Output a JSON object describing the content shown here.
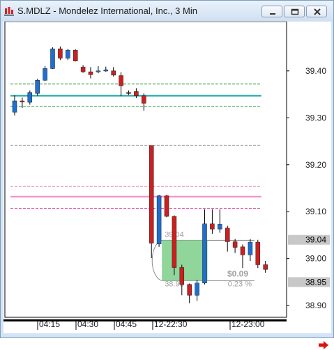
{
  "window": {
    "title": "S.MDLZ - Mondelez International, Inc., 3 Min",
    "icon": "chart-app-icon",
    "controls": [
      "minimize-icon",
      "maximize-icon",
      "close-icon"
    ]
  },
  "chart_data": {
    "type": "candlestick",
    "ylim": [
      38.875,
      39.505
    ],
    "y_ticks": [
      39.4,
      39.3,
      39.2,
      39.1,
      39.0,
      38.9
    ],
    "y_tick_labels": [
      "39.40",
      "39.30",
      "39.20",
      "39.10",
      "39.00",
      "38.90"
    ],
    "price_tags": [
      {
        "label": "39.04",
        "value": 39.04
      },
      {
        "label": "38.95",
        "value": 38.95
      }
    ],
    "x_tick_labels": [
      "04:15",
      "04:30",
      "04:45",
      "12-22:30",
      "12-23:00"
    ],
    "up_color": "#1f6fd1",
    "down_color": "#cc1f1f",
    "candles": [
      {
        "o": 39.312,
        "h": 39.348,
        "l": 39.305,
        "c": 39.336
      },
      {
        "o": 39.336,
        "h": 39.343,
        "l": 39.321,
        "c": 39.335
      },
      {
        "o": 39.333,
        "h": 39.358,
        "l": 39.328,
        "c": 39.354
      },
      {
        "o": 39.352,
        "h": 39.383,
        "l": 39.347,
        "c": 39.38
      },
      {
        "o": 39.38,
        "h": 39.41,
        "l": 39.378,
        "c": 39.405
      },
      {
        "o": 39.405,
        "h": 39.45,
        "l": 39.404,
        "c": 39.447
      },
      {
        "o": 39.447,
        "h": 39.452,
        "l": 39.423,
        "c": 39.427
      },
      {
        "o": 39.427,
        "h": 39.447,
        "l": 39.423,
        "c": 39.444
      },
      {
        "o": 39.444,
        "h": 39.446,
        "l": 39.42,
        "c": 39.421
      },
      {
        "o": 39.408,
        "h": 39.412,
        "l": 39.396,
        "c": 39.398
      },
      {
        "o": 39.398,
        "h": 39.408,
        "l": 39.384,
        "c": 39.392
      },
      {
        "o": 39.398,
        "h": 39.41,
        "l": 39.395,
        "c": 39.4
      },
      {
        "o": 39.401,
        "h": 39.409,
        "l": 39.398,
        "c": 39.402
      },
      {
        "o": 39.4,
        "h": 39.408,
        "l": 39.388,
        "c": 39.391
      },
      {
        "o": 39.39,
        "h": 39.397,
        "l": 39.346,
        "c": 39.368
      },
      {
        "o": 39.354,
        "h": 39.358,
        "l": 39.349,
        "c": 39.352
      },
      {
        "o": 39.356,
        "h": 39.363,
        "l": 39.342,
        "c": 39.347
      },
      {
        "o": 39.347,
        "h": 39.352,
        "l": 39.315,
        "c": 39.331
      },
      {
        "o": 39.241,
        "h": 39.241,
        "l": 39.001,
        "c": 39.033
      },
      {
        "o": 39.031,
        "h": 39.136,
        "l": 39.025,
        "c": 39.134
      },
      {
        "o": 39.134,
        "h": 39.136,
        "l": 39.088,
        "c": 39.09
      },
      {
        "o": 39.09,
        "h": 39.092,
        "l": 38.965,
        "c": 38.981
      },
      {
        "o": 38.981,
        "h": 38.987,
        "l": 38.922,
        "c": 38.945
      },
      {
        "o": 38.945,
        "h": 38.947,
        "l": 38.905,
        "c": 38.922
      },
      {
        "o": 38.922,
        "h": 38.955,
        "l": 38.91,
        "c": 38.948
      },
      {
        "o": 38.948,
        "h": 39.105,
        "l": 38.945,
        "c": 39.074
      },
      {
        "o": 39.074,
        "h": 39.105,
        "l": 39.053,
        "c": 39.063
      },
      {
        "o": 39.063,
        "h": 39.105,
        "l": 39.055,
        "c": 39.073
      },
      {
        "o": 39.065,
        "h": 39.07,
        "l": 39.015,
        "c": 39.036
      },
      {
        "o": 39.036,
        "h": 39.042,
        "l": 39.012,
        "c": 39.024
      },
      {
        "o": 39.025,
        "h": 39.03,
        "l": 38.98,
        "c": 39.008
      },
      {
        "o": 39.008,
        "h": 39.042,
        "l": 38.995,
        "c": 39.035
      },
      {
        "o": 39.035,
        "h": 39.04,
        "l": 38.98,
        "c": 38.987
      },
      {
        "o": 38.987,
        "h": 38.995,
        "l": 38.97,
        "c": 38.977
      }
    ],
    "levels": [
      {
        "name": "dashed-green-level",
        "value": 39.372,
        "style": "dashed",
        "color": "#2e9e3a",
        "from": 0,
        "to": 32
      },
      {
        "name": "dashed-green-level",
        "value": 39.324,
        "style": "dashed",
        "color": "#2e9e3a",
        "from": 0,
        "to": 32
      },
      {
        "name": "teal-level",
        "value": 39.347,
        "style": "solid",
        "color": "#19a7a7",
        "from": 0,
        "to": 32
      },
      {
        "name": "dark-gray-dashed-level",
        "value": 39.241,
        "style": "dashed",
        "color": "#7f7f7f",
        "from": 0,
        "to": 32
      },
      {
        "name": "pink-dashed-level",
        "value": 39.154,
        "style": "dashed",
        "color": "#e060b0",
        "from": 0,
        "to": 32
      },
      {
        "name": "pink-solid-level",
        "value": 39.132,
        "style": "solid",
        "color": "#f08cc8",
        "from": 0,
        "to": 32
      },
      {
        "name": "pink-dashed-level",
        "value": 39.107,
        "style": "dashed",
        "color": "#e060b0",
        "from": 0,
        "to": 32
      }
    ],
    "position_box": {
      "entry_label": "39.04",
      "target_label": "38.95",
      "pnl_label": "$0.09",
      "pct_label": "0.23 %",
      "top": 39.039,
      "bottom": 38.953,
      "start": 18,
      "end": 25,
      "fill": "#7ccf8a"
    }
  }
}
